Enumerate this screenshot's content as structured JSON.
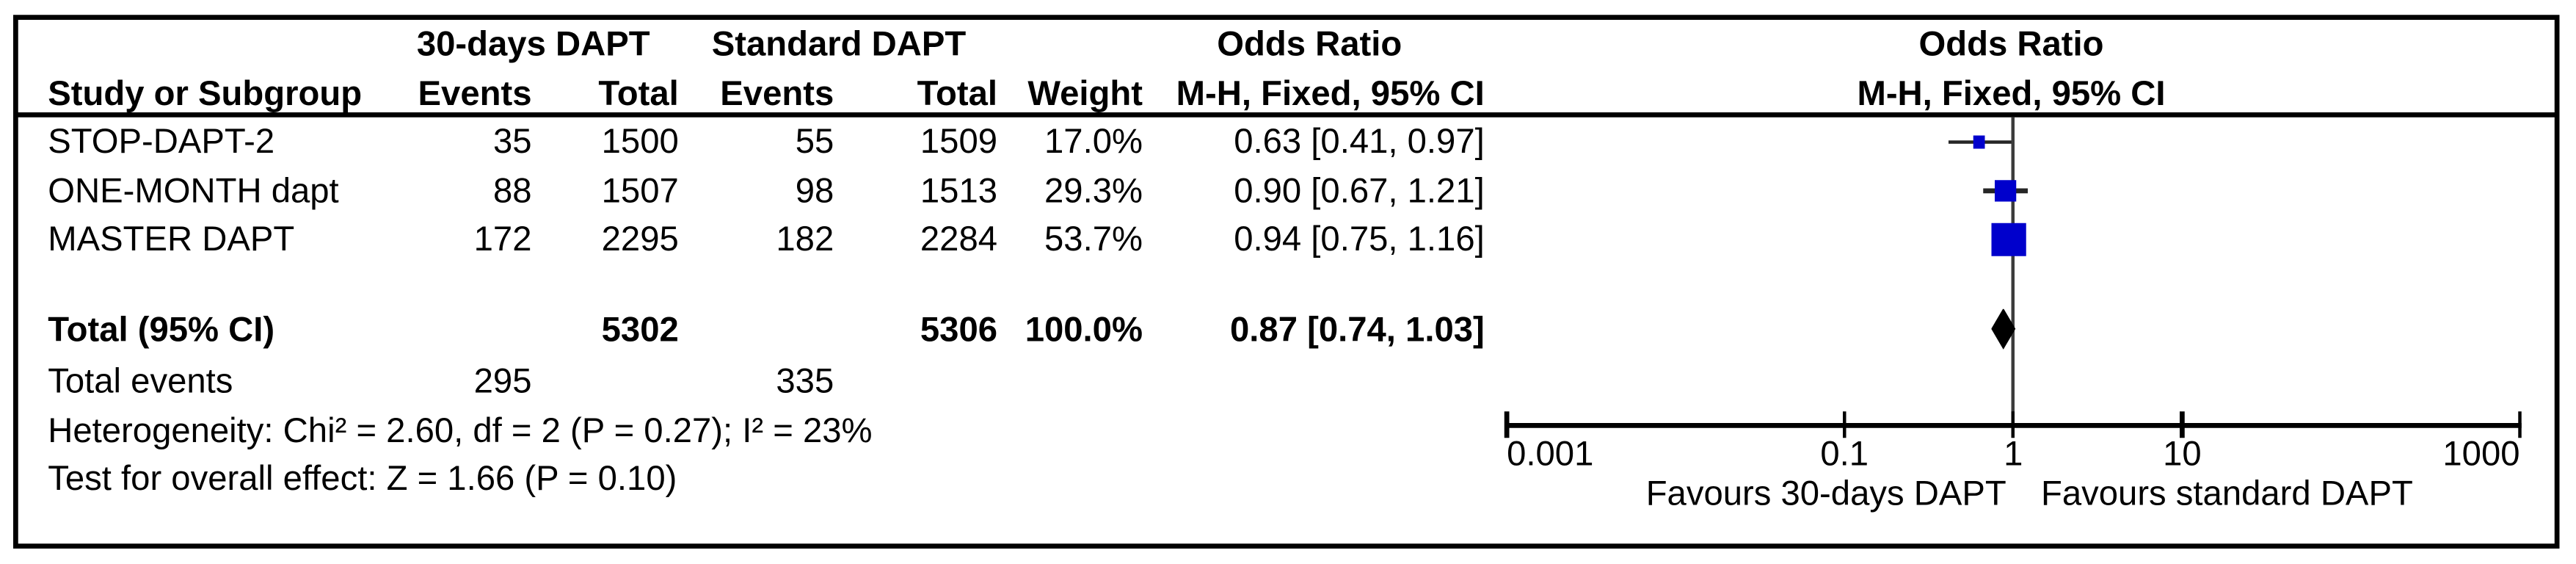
{
  "header": {
    "study_col": "Study or Subgroup",
    "group1": "30-days DAPT",
    "group2": "Standard DAPT",
    "events": "Events",
    "total": "Total",
    "weight": "Weight",
    "or_title": "Odds Ratio",
    "or_method": "M-H, Fixed, 95% CI"
  },
  "chart_data": {
    "type": "forest",
    "effect_measure": "Odds Ratio",
    "method": "M-H, Fixed, 95% CI",
    "studies": [
      {
        "study": "STOP-DAPT-2",
        "events1": 35,
        "total1": 1500,
        "events2": 55,
        "total2": 1509,
        "weight_label": "17.0%",
        "weight": 17.0,
        "or": 0.63,
        "ci_low": 0.41,
        "ci_high": 0.97,
        "or_label": "0.63 [0.41, 0.97]"
      },
      {
        "study": "ONE-MONTH dapt",
        "events1": 88,
        "total1": 1507,
        "events2": 98,
        "total2": 1513,
        "weight_label": "29.3%",
        "weight": 29.3,
        "or": 0.9,
        "ci_low": 0.67,
        "ci_high": 1.21,
        "or_label": "0.90 [0.67, 1.21]"
      },
      {
        "study": "MASTER DAPT",
        "events1": 172,
        "total1": 2295,
        "events2": 182,
        "total2": 2284,
        "weight_label": "53.7%",
        "weight": 53.7,
        "or": 0.94,
        "ci_low": 0.75,
        "ci_high": 1.16,
        "or_label": "0.94 [0.75, 1.16]"
      }
    ],
    "total": {
      "label": "Total (95% CI)",
      "total1": 5302,
      "total2": 5306,
      "weight_label": "100.0%",
      "or": 0.87,
      "ci_low": 0.74,
      "ci_high": 1.03,
      "or_label": "0.87 [0.74, 1.03]"
    },
    "total_events": {
      "label": "Total events",
      "events1": 295,
      "events2": 335
    },
    "heterogeneity": "Heterogeneity: Chi² = 2.60, df = 2 (P = 0.27); I² = 23%",
    "overall_effect": "Test for overall effect: Z = 1.66 (P = 0.10)",
    "axis": {
      "scale": "log",
      "range": [
        0.001,
        1000
      ],
      "ticks": [
        0.001,
        0.1,
        1,
        10,
        1000
      ],
      "tick_labels": [
        "0.001",
        "0.1",
        "1",
        "10",
        "1000"
      ]
    },
    "footer_left": "Favours 30-days DAPT",
    "footer_right": "Favours standard DAPT",
    "colors": {
      "square": "#0000CC",
      "diamond": "#000000",
      "ci_line": "#262626",
      "axis": "#000000",
      "null_line": "#3c3c3c"
    }
  }
}
